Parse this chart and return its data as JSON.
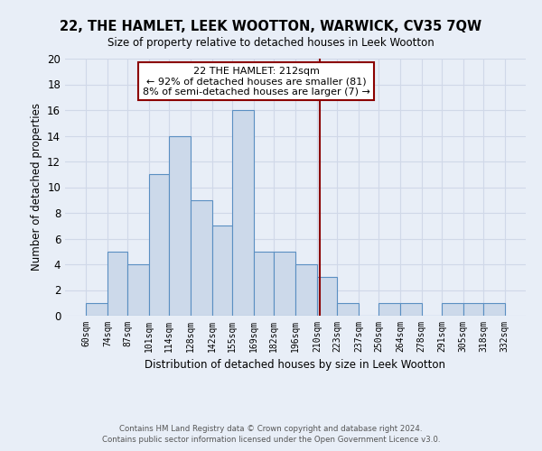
{
  "title": "22, THE HAMLET, LEEK WOOTTON, WARWICK, CV35 7QW",
  "subtitle": "Size of property relative to detached houses in Leek Wootton",
  "xlabel": "Distribution of detached houses by size in Leek Wootton",
  "ylabel": "Number of detached properties",
  "bar_edges": [
    60,
    74,
    87,
    101,
    114,
    128,
    142,
    155,
    169,
    182,
    196,
    210,
    223,
    237,
    250,
    264,
    278,
    291,
    305,
    318,
    332
  ],
  "bar_heights": [
    1,
    5,
    4,
    11,
    14,
    9,
    7,
    16,
    5,
    5,
    4,
    3,
    1,
    0,
    1,
    1,
    0,
    1,
    1,
    1
  ],
  "bar_color": "#ccd9ea",
  "bar_edge_color": "#5a8fc2",
  "tick_labels": [
    "60sqm",
    "74sqm",
    "87sqm",
    "101sqm",
    "114sqm",
    "128sqm",
    "142sqm",
    "155sqm",
    "169sqm",
    "182sqm",
    "196sqm",
    "210sqm",
    "223sqm",
    "237sqm",
    "250sqm",
    "264sqm",
    "278sqm",
    "291sqm",
    "305sqm",
    "318sqm",
    "332sqm"
  ],
  "vline_x": 212,
  "vline_color": "#8b0000",
  "ylim": [
    0,
    20
  ],
  "yticks": [
    0,
    2,
    4,
    6,
    8,
    10,
    12,
    14,
    16,
    18,
    20
  ],
  "annotation_title": "22 THE HAMLET: 212sqm",
  "annotation_line1": "← 92% of detached houses are smaller (81)",
  "annotation_line2": "8% of semi-detached houses are larger (7) →",
  "annotation_box_color": "#ffffff",
  "annotation_box_edge": "#8b0000",
  "grid_color": "#d0d8e8",
  "background_color": "#e8eef7",
  "footer_line1": "Contains HM Land Registry data © Crown copyright and database right 2024.",
  "footer_line2": "Contains public sector information licensed under the Open Government Licence v3.0."
}
